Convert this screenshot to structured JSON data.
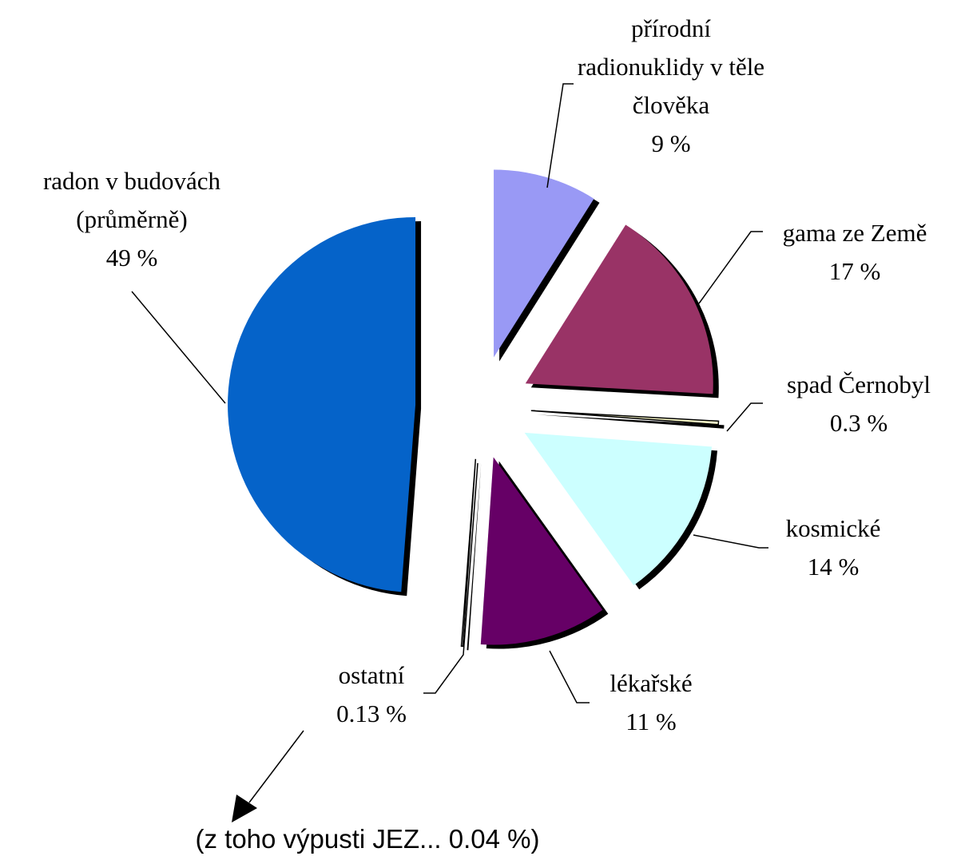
{
  "chart_data": {
    "type": "pie",
    "categories": [
      "přírodní radionuklidy v těle člověka",
      "gama ze Země",
      "spad Černobyl",
      "kosmické",
      "lékařské",
      "ostatní",
      "radon v budovách (průměrně)"
    ],
    "values": [
      9,
      17,
      0.3,
      14,
      11,
      0.13,
      49
    ],
    "value_labels": [
      "9 %",
      "17 %",
      "0.3 %",
      "14 %",
      "11 %",
      "0.13 %",
      "49 %"
    ],
    "colors": [
      "#9999f5",
      "#993366",
      "#ffffcc",
      "#ccffff",
      "#660066",
      "#ffffff",
      "#0563c9"
    ],
    "annotation": "(z toho výpusti JEZ... 0.04 %)"
  }
}
